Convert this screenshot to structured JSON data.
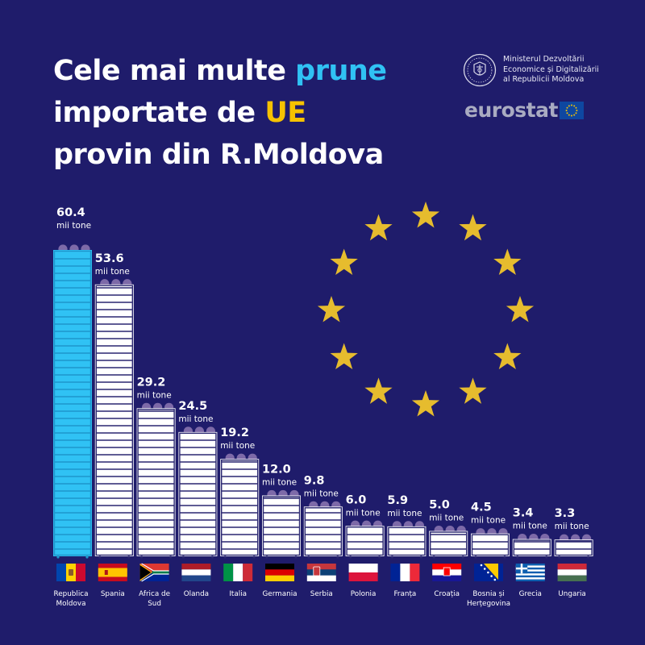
{
  "title": {
    "line1_pre": "Cele mai multe ",
    "line1_highlight": "prune",
    "line2_pre": "importate de ",
    "line2_highlight": "UE",
    "line3": "provin din R.Moldova"
  },
  "logos": {
    "ministry_line1": "Ministerul Dezvoltării",
    "ministry_line2": "Economice și Digitalizării",
    "ministry_line3": "al Republicii Moldova",
    "eurostat": "eurostat"
  },
  "colors": {
    "background": "#1f1c6b",
    "highlight_bar": "#30c2f4",
    "bar": "#ffffff",
    "title_blue": "#30c2f4",
    "title_yellow": "#f6c200",
    "star": "#e6bc2e",
    "plum": "#7d6aa8"
  },
  "chart_data": {
    "type": "bar",
    "unit": "mii tone",
    "categories": [
      "Republica Moldova",
      "Spania",
      "Africa de Sud",
      "Olanda",
      "Italia",
      "Germania",
      "Serbia",
      "Polonia",
      "Franța",
      "Croația",
      "Bosnia și Herțegovina",
      "Grecia",
      "Ungaria"
    ],
    "category_lines": [
      [
        "Republica",
        "Moldova"
      ],
      [
        "Spania"
      ],
      [
        "Africa de",
        "Sud"
      ],
      [
        "Olanda"
      ],
      [
        "Italia"
      ],
      [
        "Germania"
      ],
      [
        "Serbia"
      ],
      [
        "Polonia"
      ],
      [
        "Franța"
      ],
      [
        "Croația"
      ],
      [
        "Bosnia și",
        "Herțegovina"
      ],
      [
        "Grecia"
      ],
      [
        "Ungaria"
      ]
    ],
    "values": [
      60.4,
      53.6,
      29.2,
      24.5,
      19.2,
      12.0,
      9.8,
      6.0,
      5.9,
      5.0,
      4.5,
      3.4,
      3.3
    ],
    "value_labels": [
      "60.4",
      "53.6",
      "29.2",
      "24.5",
      "19.2",
      "12.0",
      "9.8",
      "6.0",
      "5.9",
      "5.0",
      "4.5",
      "3.4",
      "3.3"
    ],
    "highlight_index": 0,
    "flags": [
      "moldova",
      "spain",
      "south-africa",
      "netherlands",
      "italy",
      "germany",
      "serbia",
      "poland",
      "france",
      "croatia",
      "bosnia",
      "greece",
      "hungary"
    ],
    "ylim": [
      0,
      60.4
    ]
  }
}
